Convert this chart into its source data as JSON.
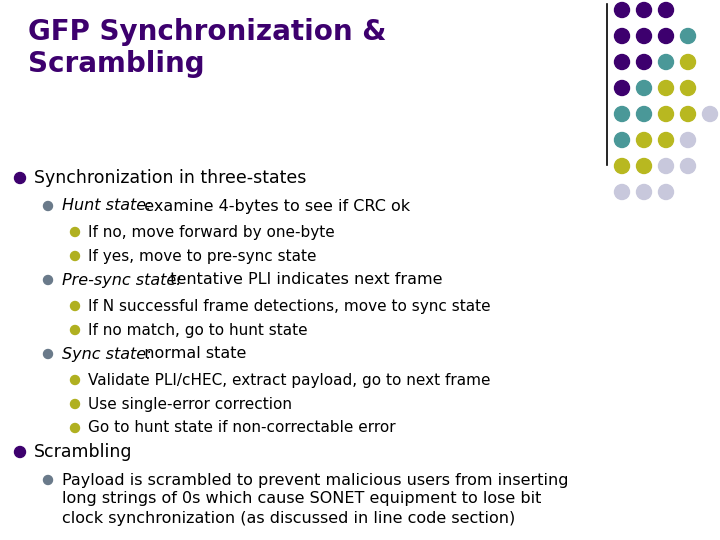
{
  "title_line1": "GFP Synchronization &",
  "title_line2": "Scrambling",
  "title_color": "#3d006e",
  "bg_color": "#ffffff",
  "dot_grid": {
    "rows": [
      {
        "cols": 3,
        "colors": [
          "#3d006e",
          "#3d006e",
          "#3d006e"
        ]
      },
      {
        "cols": 4,
        "colors": [
          "#3d006e",
          "#3d006e",
          "#3d006e",
          "#4a9898"
        ]
      },
      {
        "cols": 4,
        "colors": [
          "#3d006e",
          "#3d006e",
          "#4a9898",
          "#b8b820"
        ]
      },
      {
        "cols": 4,
        "colors": [
          "#3d006e",
          "#4a9898",
          "#b8b820",
          "#b8b820"
        ]
      },
      {
        "cols": 5,
        "colors": [
          "#4a9898",
          "#4a9898",
          "#b8b820",
          "#b8b820",
          "#c8c8dc"
        ]
      },
      {
        "cols": 4,
        "colors": [
          "#4a9898",
          "#b8b820",
          "#b8b820",
          "#c8c8dc"
        ]
      },
      {
        "cols": 4,
        "colors": [
          "#b8b820",
          "#b8b820",
          "#c8c8dc",
          "#c8c8dc"
        ]
      },
      {
        "cols": 3,
        "colors": [
          "#c8c8dc",
          "#c8c8dc",
          "#c8c8dc"
        ]
      }
    ]
  },
  "content": [
    {
      "level": 1,
      "bullet_color": "#3d006e",
      "text": "Synchronization in three-states",
      "italic_part": false
    },
    {
      "level": 2,
      "bullet_color": "#6a7a8a",
      "text_italic": "Hunt state:",
      "text_normal": "  examine 4-bytes to see if CRC ok",
      "italic_part": true
    },
    {
      "level": 3,
      "bullet_color": "#b0b020",
      "text": "If no, move forward by one-byte",
      "italic_part": false
    },
    {
      "level": 3,
      "bullet_color": "#b0b020",
      "text": "If yes, move to pre-sync state",
      "italic_part": false
    },
    {
      "level": 2,
      "bullet_color": "#6a7a8a",
      "text_italic": "Pre-sync state:",
      "text_normal": "  tentative PLI indicates next frame",
      "italic_part": true
    },
    {
      "level": 3,
      "bullet_color": "#b0b020",
      "text": "If N successful frame detections, move to sync state",
      "italic_part": false
    },
    {
      "level": 3,
      "bullet_color": "#b0b020",
      "text": "If no match, go to hunt state",
      "italic_part": false
    },
    {
      "level": 2,
      "bullet_color": "#6a7a8a",
      "text_italic": "Sync state:",
      "text_normal": "  normal state",
      "italic_part": true
    },
    {
      "level": 3,
      "bullet_color": "#b0b020",
      "text": "Validate PLI/cHEC, extract payload, go to next frame",
      "italic_part": false
    },
    {
      "level": 3,
      "bullet_color": "#b0b020",
      "text": "Use single-error correction",
      "italic_part": false
    },
    {
      "level": 3,
      "bullet_color": "#b0b020",
      "text": "Go to hunt state if non-correctable error",
      "italic_part": false
    },
    {
      "level": 1,
      "bullet_color": "#3d006e",
      "text": "Scrambling",
      "italic_part": false
    },
    {
      "level": 2,
      "bullet_color": "#6a7a8a",
      "text_line1": "Payload is scrambled to prevent malicious users from inserting",
      "text_line2": "long strings of 0s which cause SONET equipment to lose bit",
      "text_line3": "clock synchronization (as discussed in line code section)",
      "italic_part": false,
      "multiline": true
    }
  ],
  "font": "DejaVu Sans",
  "title_fs": 20,
  "body_fs": 11.2
}
